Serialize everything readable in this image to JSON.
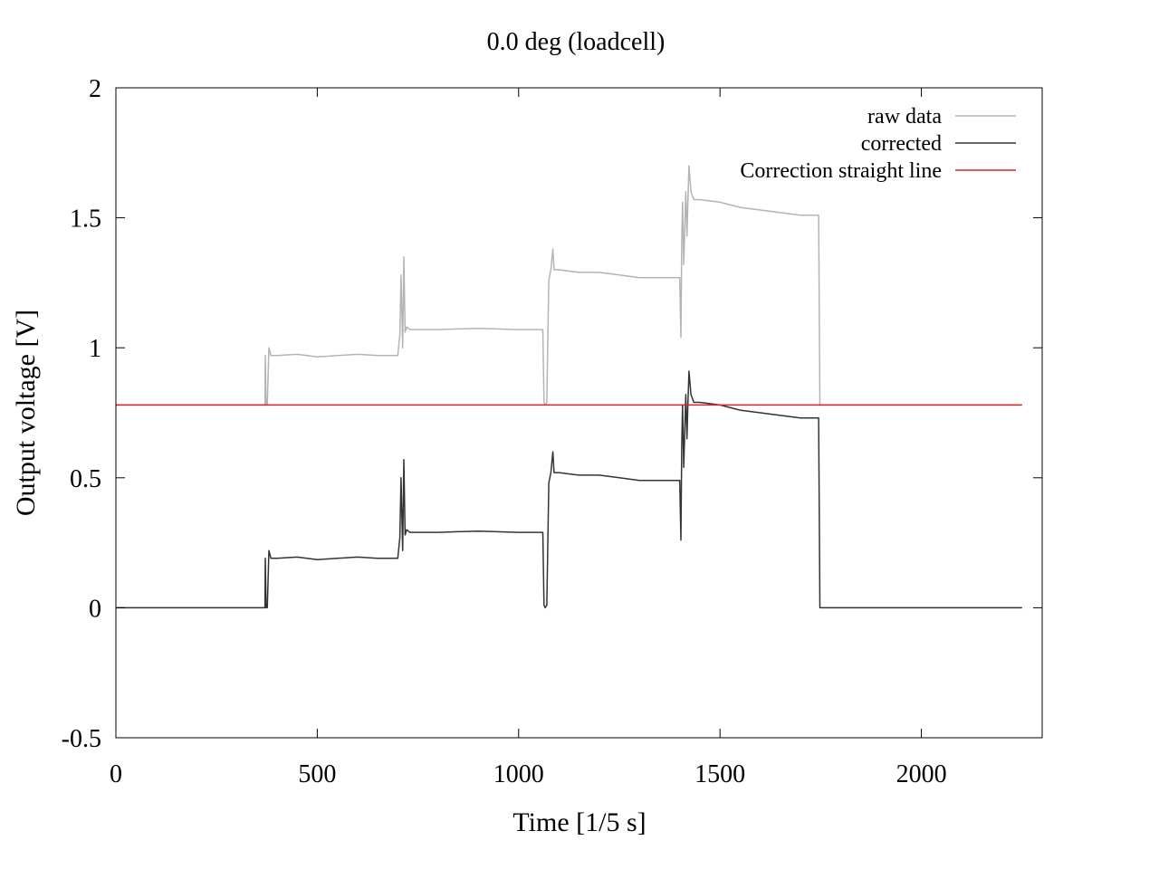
{
  "chart_data": {
    "type": "line",
    "title": "0.0 deg (loadcell)",
    "xlabel": "Time [1/5 s]",
    "ylabel": "Output voltage [V]",
    "xlim": [
      0,
      2300
    ],
    "ylim": [
      -0.5,
      2
    ],
    "xticks": [
      0,
      500,
      1000,
      1500,
      2000
    ],
    "yticks": [
      -0.5,
      0,
      0.5,
      1,
      1.5,
      2
    ],
    "ytick_labels": [
      "-0.5",
      "0",
      "0.5",
      "1",
      "1.5",
      "2"
    ],
    "xtick_labels": [
      "0",
      "500",
      "1000",
      "1500",
      "2000"
    ],
    "grid": false,
    "legend_position": "top-right",
    "series": [
      {
        "name": "raw data",
        "color": "#b4b4b4",
        "x": [
          0,
          370,
          371,
          373,
          376,
          380,
          385,
          400,
          450,
          500,
          550,
          600,
          650,
          700,
          705,
          708,
          712,
          715,
          718,
          722,
          730,
          800,
          900,
          1000,
          1060,
          1063,
          1066,
          1070,
          1075,
          1080,
          1085,
          1088,
          1100,
          1150,
          1200,
          1250,
          1300,
          1350,
          1400,
          1403,
          1405,
          1407,
          1410,
          1415,
          1418,
          1420,
          1423,
          1428,
          1435,
          1450,
          1500,
          1550,
          1600,
          1650,
          1700,
          1745,
          1748,
          1752,
          1800,
          1900,
          2000,
          2100,
          2250
        ],
        "y": [
          0.78,
          0.78,
          0.97,
          0.78,
          0.78,
          1.0,
          0.97,
          0.97,
          0.975,
          0.965,
          0.97,
          0.975,
          0.97,
          0.97,
          1.05,
          1.28,
          1.0,
          1.35,
          1.06,
          1.08,
          1.07,
          1.07,
          1.075,
          1.07,
          1.07,
          0.79,
          0.78,
          0.79,
          1.26,
          1.3,
          1.38,
          1.3,
          1.3,
          1.29,
          1.29,
          1.28,
          1.27,
          1.27,
          1.27,
          1.04,
          1.4,
          1.56,
          1.32,
          1.6,
          1.43,
          1.55,
          1.7,
          1.6,
          1.57,
          1.57,
          1.56,
          1.54,
          1.53,
          1.52,
          1.51,
          1.51,
          0.78,
          0.78,
          0.78,
          0.78,
          0.78,
          0.78,
          0.78
        ]
      },
      {
        "name": "corrected",
        "color": "#333333",
        "x": [
          0,
          370,
          371,
          373,
          376,
          380,
          385,
          400,
          450,
          500,
          550,
          600,
          650,
          700,
          705,
          708,
          712,
          715,
          718,
          722,
          730,
          800,
          900,
          1000,
          1060,
          1063,
          1066,
          1070,
          1075,
          1080,
          1085,
          1088,
          1100,
          1150,
          1200,
          1250,
          1300,
          1350,
          1400,
          1403,
          1405,
          1407,
          1410,
          1415,
          1418,
          1420,
          1423,
          1428,
          1435,
          1450,
          1500,
          1550,
          1600,
          1650,
          1700,
          1745,
          1748,
          1752,
          1800,
          1900,
          2000,
          2100,
          2250
        ],
        "y": [
          0.0,
          0.0,
          0.19,
          0.0,
          0.0,
          0.22,
          0.19,
          0.19,
          0.195,
          0.185,
          0.19,
          0.195,
          0.19,
          0.19,
          0.27,
          0.5,
          0.22,
          0.57,
          0.28,
          0.3,
          0.29,
          0.29,
          0.295,
          0.29,
          0.29,
          0.01,
          0.0,
          0.01,
          0.48,
          0.52,
          0.6,
          0.52,
          0.52,
          0.51,
          0.51,
          0.5,
          0.49,
          0.49,
          0.49,
          0.26,
          0.62,
          0.78,
          0.54,
          0.82,
          0.65,
          0.77,
          0.91,
          0.82,
          0.79,
          0.79,
          0.78,
          0.76,
          0.75,
          0.74,
          0.73,
          0.73,
          0.0,
          0.0,
          0.0,
          0.0,
          0.0,
          0.0,
          0.0
        ]
      },
      {
        "name": "Correction straight line",
        "color": "#e02020",
        "x": [
          0,
          2250
        ],
        "y": [
          0.78,
          0.78
        ]
      }
    ]
  }
}
